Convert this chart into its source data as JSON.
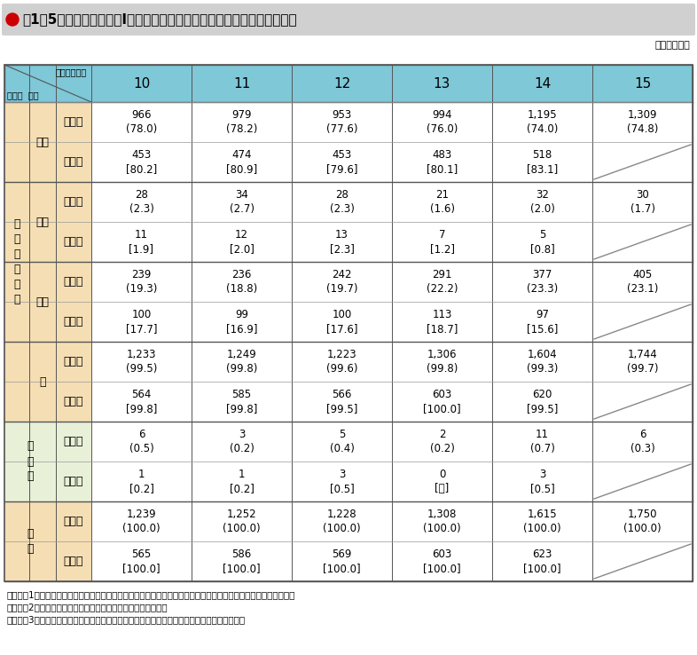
{
  "title": "●表1－5　国家公務員採用Ⅰ種試験の年度別学歴別の合格者数及び採用者数",
  "unit": "（単位：人）",
  "years": [
    "10",
    "11",
    "12",
    "13",
    "14",
    "15"
  ],
  "header_bg": "#7ec8d8",
  "daigakuin_bg": "#f5deb3",
  "sonota_bg": "#e8f0d8",
  "gokei_bg": "#f5deb3",
  "white_bg": "#ffffff",
  "rows": [
    {
      "group": "大\n学\n院\n・\n大\n学",
      "subgroup": "国立",
      "item": "合格者",
      "values": [
        "966\n(78.0)",
        "979\n(78.2)",
        "953\n(77.6)",
        "994\n(76.0)",
        "1,195\n(74.0)",
        "1,309\n(74.8)"
      ],
      "has_slash_15": false
    },
    {
      "group": "大\n学\n院\n・\n大\n学",
      "subgroup": "国立",
      "item": "採用者",
      "values": [
        "453\n[80.2]",
        "474\n[80.9]",
        "453\n[79.6]",
        "483\n[80.1]",
        "518\n[83.1]",
        ""
      ],
      "has_slash_15": true
    },
    {
      "group": "大\n学\n院\n・\n大\n学",
      "subgroup": "公立",
      "item": "合格者",
      "values": [
        "28\n(2.3)",
        "34\n(2.7)",
        "28\n(2.3)",
        "21\n(1.6)",
        "32\n(2.0)",
        "30\n(1.7)"
      ],
      "has_slash_15": false
    },
    {
      "group": "大\n学\n院\n・\n大\n学",
      "subgroup": "公立",
      "item": "採用者",
      "values": [
        "11\n[1.9]",
        "12\n[2.0]",
        "13\n[2.3]",
        "7\n[1.2]",
        "5\n[0.8]",
        ""
      ],
      "has_slash_15": true
    },
    {
      "group": "大\n学\n院\n・\n大\n学",
      "subgroup": "私立",
      "item": "合格者",
      "values": [
        "239\n(19.3)",
        "236\n(18.8)",
        "242\n(19.7)",
        "291\n(22.2)",
        "377\n(23.3)",
        "405\n(23.1)"
      ],
      "has_slash_15": false
    },
    {
      "group": "大\n学\n院\n・\n大\n学",
      "subgroup": "私立",
      "item": "採用者",
      "values": [
        "100\n[17.7]",
        "99\n[16.9]",
        "100\n[17.6]",
        "113\n[18.7]",
        "97\n[15.6]",
        ""
      ],
      "has_slash_15": true
    },
    {
      "group": "大\n学\n院\n・\n大\n学",
      "subgroup": "計",
      "item": "合格者",
      "values": [
        "1,233\n(99.5)",
        "1,249\n(99.8)",
        "1,223\n(99.6)",
        "1,306\n(99.8)",
        "1,604\n(99.3)",
        "1,744\n(99.7)"
      ],
      "has_slash_15": false
    },
    {
      "group": "大\n学\n院\n・\n大\n学",
      "subgroup": "計",
      "item": "採用者",
      "values": [
        "564\n[99.8]",
        "585\n[99.8]",
        "566\n[99.5]",
        "603\n[100.0]",
        "620\n[99.5]",
        ""
      ],
      "has_slash_15": true
    },
    {
      "group": "その他",
      "subgroup": "",
      "item": "合格者",
      "values": [
        "6\n(0.5)",
        "3\n(0.2)",
        "5\n(0.4)",
        "2\n(0.2)",
        "11\n(0.7)",
        "6\n(0.3)"
      ],
      "has_slash_15": false
    },
    {
      "group": "その他",
      "subgroup": "",
      "item": "採用者",
      "values": [
        "1\n[0.2]",
        "1\n[0.2]",
        "3\n[0.5]",
        "0\n[－]",
        "3\n[0.5]",
        ""
      ],
      "has_slash_15": true
    },
    {
      "group": "合計",
      "subgroup": "",
      "item": "合格者",
      "values": [
        "1,239\n(100.0)",
        "1,252\n(100.0)",
        "1,228\n(100.0)",
        "1,308\n(100.0)",
        "1,615\n(100.0)",
        "1,750\n(100.0)"
      ],
      "has_slash_15": false
    },
    {
      "group": "合計",
      "subgroup": "",
      "item": "採用者",
      "values": [
        "565\n[100.0]",
        "586\n[100.0]",
        "569\n[100.0]",
        "603\n[100.0]",
        "623\n[100.0]",
        ""
      ],
      "has_slash_15": true
    }
  ],
  "notes": [
    "（注）　1　（　）内は，合格者総数に対する割合（％）を，［　］内は，採用者総数に対する割合（％）を示す。",
    "　　　　2　「その他」は，短大・高専，外国の大学等である。",
    "　　　　3　「採用者」は，当該年度の翌年度の採用者数（旧年度合格者等を含む。）である。"
  ]
}
